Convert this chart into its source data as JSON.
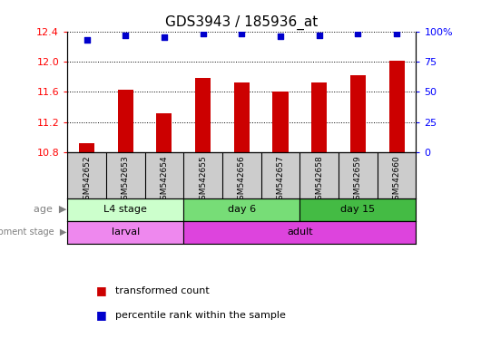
{
  "title": "GDS3943 / 185936_at",
  "samples": [
    "GSM542652",
    "GSM542653",
    "GSM542654",
    "GSM542655",
    "GSM542656",
    "GSM542657",
    "GSM542658",
    "GSM542659",
    "GSM542660"
  ],
  "transformed_count": [
    10.93,
    11.63,
    11.32,
    11.78,
    11.73,
    11.6,
    11.73,
    11.82,
    12.01
  ],
  "percentile_rank": [
    93,
    97,
    95,
    98,
    98,
    96,
    97,
    98,
    98
  ],
  "ylim": [
    10.8,
    12.4
  ],
  "yticks": [
    10.8,
    11.2,
    11.6,
    12.0,
    12.4
  ],
  "right_yticks": [
    0,
    25,
    50,
    75,
    100
  ],
  "right_ylabels": [
    "0",
    "25",
    "50",
    "75",
    "100%"
  ],
  "bar_color": "#cc0000",
  "dot_color": "#0000cc",
  "age_groups": [
    {
      "label": "L4 stage",
      "start": 0,
      "end": 3,
      "color": "#ccffcc"
    },
    {
      "label": "day 6",
      "start": 3,
      "end": 6,
      "color": "#77dd77"
    },
    {
      "label": "day 15",
      "start": 6,
      "end": 9,
      "color": "#44bb44"
    }
  ],
  "dev_groups": [
    {
      "label": "larval",
      "start": 0,
      "end": 3,
      "color": "#ee88ee"
    },
    {
      "label": "adult",
      "start": 3,
      "end": 9,
      "color": "#dd44dd"
    }
  ],
  "sample_box_color": "#cccccc",
  "legend_items": [
    {
      "color": "#cc0000",
      "label": "transformed count"
    },
    {
      "color": "#0000cc",
      "label": "percentile rank within the sample"
    }
  ]
}
